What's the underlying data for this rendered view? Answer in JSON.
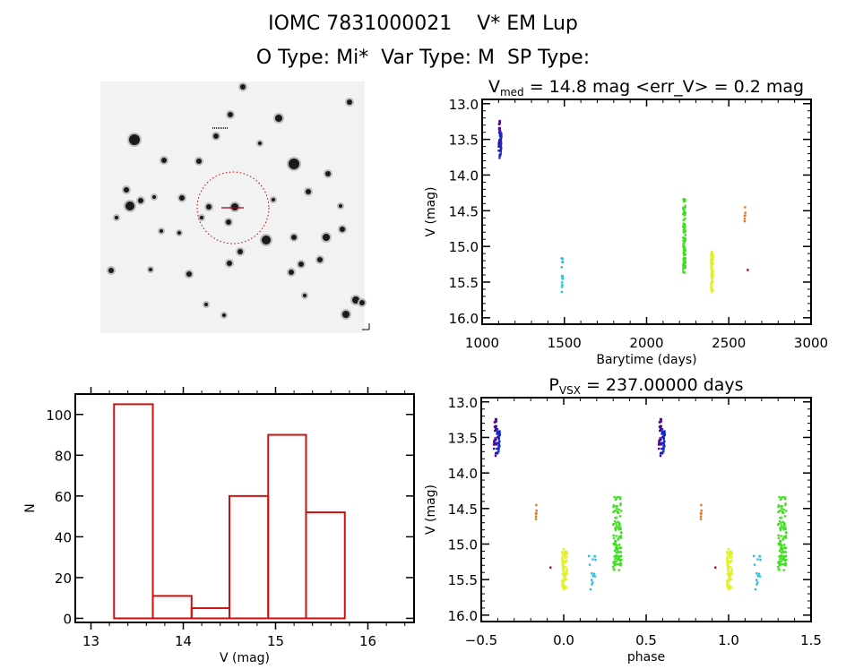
{
  "header": {
    "title_line1": "IOMC 7831000021    V* EM Lup",
    "title_line2": "O Type: Mi*  Var Type: M  SP Type:"
  },
  "sky_image": {
    "description_kind": "finder-chart",
    "marker_color": "#c00000"
  },
  "chart_data": [
    {
      "id": "lightcurve",
      "type": "scatter",
      "title_prefix": "V",
      "title_sub": "med",
      "title_rest": " = 14.8 mag <err_V> = 0.2 mag",
      "xlabel": "Barytime (days)",
      "ylabel": "V (mag)",
      "xlim": [
        1000,
        3000
      ],
      "ylim": [
        16.09,
        12.94
      ],
      "y_reversed": true,
      "xticks": [
        1000,
        1500,
        2000,
        2500,
        3000
      ],
      "xtick_labels": [
        "1000",
        "1500",
        "2000",
        "2500",
        "3000"
      ],
      "yticks": [
        13.0,
        13.5,
        14.0,
        14.5,
        15.0,
        15.5,
        16.0
      ],
      "ytick_labels": [
        "13.0",
        "13.5",
        "14.0",
        "14.5",
        "15.0",
        "15.5",
        "16.0"
      ],
      "clusters": [
        {
          "name": "season-1a",
          "color": "#4b0a8c",
          "t": [
            1100,
            1110
          ],
          "v": [
            13.22,
            13.78
          ],
          "n": 30
        },
        {
          "name": "season-1b",
          "color": "#1428c8",
          "t": [
            1108,
            1118
          ],
          "v": [
            13.38,
            13.74
          ],
          "n": 30
        },
        {
          "name": "season-2",
          "color": "#28c0d8",
          "t": [
            1482,
            1492
          ],
          "v": [
            15.1,
            15.65
          ],
          "n": 14
        },
        {
          "name": "season-3",
          "color": "#40e020",
          "t": [
            2222,
            2236
          ],
          "v": [
            14.33,
            15.37
          ],
          "n": 110
        },
        {
          "name": "season-4",
          "color": "#e0f020",
          "t": [
            2392,
            2404
          ],
          "v": [
            15.03,
            15.67
          ],
          "n": 60
        },
        {
          "name": "season-5",
          "color": "#e07820",
          "t": [
            2594,
            2600
          ],
          "v": [
            14.45,
            14.67
          ],
          "n": 6
        },
        {
          "name": "season-6",
          "color": "#c00000",
          "t": [
            2614,
            2620
          ],
          "v": [
            15.33,
            15.33
          ],
          "n": 1
        }
      ]
    },
    {
      "id": "histogram",
      "type": "bar",
      "xlabel": "V (mag)",
      "ylabel": "N",
      "xlim": [
        12.83,
        16.5
      ],
      "ylim": [
        -2,
        110
      ],
      "xticks": [
        13,
        14,
        15,
        16
      ],
      "xtick_labels": [
        "13",
        "14",
        "15",
        "16"
      ],
      "yticks": [
        0,
        20,
        40,
        60,
        80,
        100
      ],
      "ytick_labels": [
        "0",
        "20",
        "40",
        "60",
        "80",
        "100"
      ],
      "bin_edges": [
        13.25,
        13.67,
        14.09,
        14.5,
        14.92,
        15.33,
        15.75
      ],
      "values": [
        105,
        11,
        5,
        60,
        90,
        52
      ],
      "bar_color": "#cc1111"
    },
    {
      "id": "phased",
      "type": "scatter",
      "title_prefix": "P",
      "title_sub": "VSX",
      "title_rest": " = 237.00000 days",
      "xlabel": "phase",
      "ylabel": "V (mag)",
      "xlim": [
        -0.5,
        1.5
      ],
      "ylim": [
        16.09,
        12.94
      ],
      "y_reversed": true,
      "xticks": [
        -0.5,
        0.0,
        0.5,
        1.0,
        1.5
      ],
      "xtick_labels": [
        "−0.5",
        "0.0",
        "0.5",
        "1.0",
        "1.5"
      ],
      "yticks": [
        13.0,
        13.5,
        14.0,
        14.5,
        15.0,
        15.5,
        16.0
      ],
      "ytick_labels": [
        "13.0",
        "13.5",
        "14.0",
        "14.5",
        "15.0",
        "15.5",
        "16.0"
      ],
      "period_days": 237.0,
      "clusters": [
        {
          "name": "season-1a",
          "color": "#4b0a8c",
          "phase": [
            -0.425,
            -0.405
          ],
          "v": [
            13.22,
            13.78
          ],
          "n": 30
        },
        {
          "name": "season-1b",
          "color": "#1428c8",
          "phase": [
            -0.405,
            -0.385
          ],
          "v": [
            13.38,
            13.74
          ],
          "n": 30
        },
        {
          "name": "season-2",
          "color": "#28c0d8",
          "phase": [
            0.15,
            0.2
          ],
          "v": [
            15.1,
            15.65
          ],
          "n": 14
        },
        {
          "name": "season-3",
          "color": "#40e020",
          "phase": [
            0.3,
            0.35
          ],
          "v": [
            14.33,
            15.37
          ],
          "n": 110
        },
        {
          "name": "season-4",
          "color": "#e0f020",
          "phase": [
            -0.01,
            0.02
          ],
          "v": [
            15.03,
            15.67
          ],
          "n": 60
        },
        {
          "name": "season-5",
          "color": "#e07820",
          "phase": [
            -0.17,
            -0.165
          ],
          "v": [
            14.45,
            14.67
          ],
          "n": 6
        },
        {
          "name": "season-6",
          "color": "#c00000",
          "phase": [
            -0.08,
            -0.08
          ],
          "v": [
            15.33,
            15.33
          ],
          "n": 1
        }
      ],
      "repeat_offset": 1.0
    }
  ]
}
